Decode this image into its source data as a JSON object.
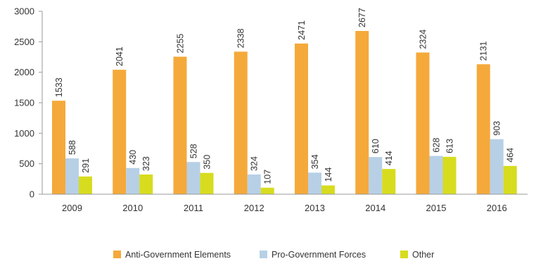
{
  "chart_data": {
    "type": "bar",
    "title": "",
    "xlabel": "",
    "ylabel": "",
    "categories": [
      "2009",
      "2010",
      "2011",
      "2012",
      "2013",
      "2014",
      "2015",
      "2016"
    ],
    "ylim": [
      0,
      3000
    ],
    "yticks": [
      0,
      500,
      1000,
      1500,
      2000,
      2500,
      3000
    ],
    "grid": false,
    "legend_position": "bottom",
    "series": [
      {
        "name": "Anti-Government Elements",
        "color": "#F5A93A",
        "values": [
          1533,
          2041,
          2255,
          2338,
          2471,
          2677,
          2324,
          2131
        ]
      },
      {
        "name": "Pro-Government Forces",
        "color": "#B7D0E6",
        "values": [
          588,
          430,
          528,
          324,
          354,
          610,
          628,
          903
        ]
      },
      {
        "name": "Other",
        "color": "#D7DC1E",
        "values": [
          291,
          323,
          350,
          107,
          144,
          414,
          613,
          464
        ]
      }
    ]
  }
}
